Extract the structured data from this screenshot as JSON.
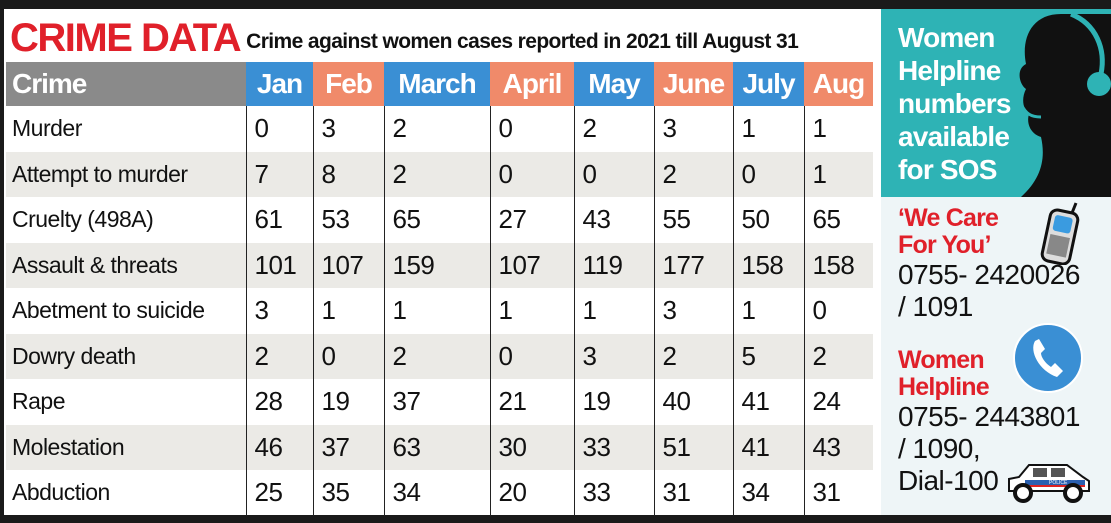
{
  "title": "CRIME DATA",
  "subtitle": "Crime against women cases reported in 2021 till August 31",
  "chart_data": {
    "type": "table",
    "title": "CRIME DATA",
    "subtitle": "Crime against women cases reported in 2021 till August 31",
    "header": "Crime",
    "columns": [
      "Jan",
      "Feb",
      "March",
      "April",
      "May",
      "June",
      "July",
      "Aug"
    ],
    "rows": [
      {
        "crime": "Murder",
        "values": [
          0,
          3,
          2,
          0,
          2,
          3,
          1,
          1
        ]
      },
      {
        "crime": "Attempt to murder",
        "values": [
          7,
          8,
          2,
          0,
          0,
          2,
          0,
          1
        ]
      },
      {
        "crime": "Cruelty (498A)",
        "values": [
          61,
          53,
          65,
          27,
          43,
          55,
          50,
          65
        ]
      },
      {
        "crime": "Assault & threats",
        "values": [
          101,
          107,
          159,
          107,
          119,
          177,
          158,
          158
        ]
      },
      {
        "crime": "Abetment to suicide",
        "values": [
          3,
          1,
          1,
          1,
          1,
          3,
          1,
          0
        ]
      },
      {
        "crime": "Dowry death",
        "values": [
          2,
          0,
          2,
          0,
          3,
          2,
          5,
          2
        ]
      },
      {
        "crime": "Rape",
        "values": [
          28,
          19,
          37,
          21,
          19,
          40,
          41,
          24
        ]
      },
      {
        "crime": "Molestation",
        "values": [
          46,
          37,
          63,
          30,
          33,
          51,
          41,
          43
        ]
      },
      {
        "crime": "Abduction",
        "values": [
          25,
          35,
          34,
          20,
          33,
          31,
          34,
          31
        ]
      }
    ]
  },
  "colors": {
    "title_red": "#e0202a",
    "header_gray": "#8a8a8a",
    "header_blue": "#3a8fd4",
    "header_salmon": "#f08a6a",
    "teal": "#2eb3b5"
  },
  "helpline": {
    "heading": [
      "Women",
      "Helpline",
      "numbers",
      "available",
      "for SOS"
    ],
    "we_care_1": "‘We Care",
    "we_care_2": "For You’",
    "we_care_num_1": "0755- 2420026",
    "we_care_num_2": "/ 1091",
    "women_1": "Women",
    "women_2": "Helpline",
    "women_num_1": "0755- 2443801",
    "women_num_2": "/ 1090,",
    "women_num_3": "Dial-100",
    "police_label": "POLICE"
  }
}
